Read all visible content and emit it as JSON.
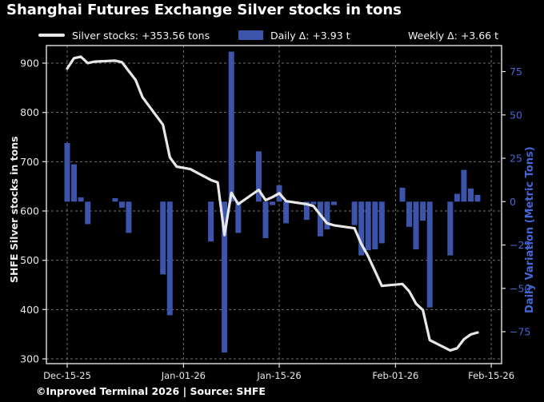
{
  "title": "Shanghai Futures Exchange Silver stocks in tons",
  "legend": {
    "silver_stocks": "Silver stocks: +353.56 tons",
    "daily_delta": "Daily Δ: +3.93 t",
    "weekly_delta": "Weekly Δ: +3.66 t"
  },
  "footer": "©Inproved Terminal 2026 | Source: SHFE",
  "colors": {
    "background": "#000000",
    "line": "#e8e8e8",
    "bar": "#3c55ab",
    "right_axis_text": "#4666d6",
    "axis_text": "#e8e8e8",
    "grid": "#999999",
    "spine": "#d5d5d5"
  },
  "chart_data": {
    "type": "combo-line-bar",
    "title": "Shanghai Futures Exchange Silver stocks in tons",
    "grid": "dashed",
    "legend_position": "top",
    "x_axis": {
      "tick_labels": [
        "Dec-15-25",
        "Jan-01-26",
        "Jan-15-26",
        "Feb-01-26",
        "Feb-15-26"
      ],
      "tick_day_offsets": [
        0,
        17,
        31,
        48,
        62
      ]
    },
    "left_axis": {
      "label": "SHFE Silver stocks in tons",
      "ticks": [
        300,
        400,
        500,
        600,
        700,
        800,
        900
      ],
      "range": [
        290,
        936
      ]
    },
    "right_axis": {
      "label": "Daily Variation (Metric Tons)",
      "ticks": [
        -75,
        -50,
        -25,
        0,
        25,
        50,
        75
      ],
      "range": [
        -93,
        90
      ]
    },
    "dates": [
      "Dec-15",
      "Dec-16",
      "Dec-17",
      "Dec-18",
      "Dec-19",
      "Dec-22",
      "Dec-23",
      "Dec-24",
      "Dec-25",
      "Dec-26",
      "Dec-29",
      "Dec-30",
      "Dec-31",
      "Jan-02",
      "Jan-05",
      "Jan-06",
      "Jan-07",
      "Jan-08",
      "Jan-09",
      "Jan-12",
      "Jan-13",
      "Jan-14",
      "Jan-15",
      "Jan-16",
      "Jan-19",
      "Jan-20",
      "Jan-21",
      "Jan-22",
      "Jan-23",
      "Jan-26",
      "Jan-27",
      "Jan-28",
      "Jan-29",
      "Jan-30",
      "Feb-02",
      "Feb-03",
      "Feb-04",
      "Feb-05",
      "Feb-06",
      "Feb-09",
      "Feb-10",
      "Feb-11",
      "Feb-12",
      "Feb-13"
    ],
    "day_offsets": [
      0,
      1,
      2,
      3,
      4,
      7,
      8,
      9,
      10,
      11,
      14,
      15,
      16,
      18,
      21,
      22,
      23,
      24,
      25,
      28,
      29,
      30,
      31,
      32,
      35,
      36,
      37,
      38,
      39,
      42,
      43,
      44,
      45,
      46,
      49,
      50,
      51,
      52,
      53,
      56,
      57,
      58,
      59,
      60
    ],
    "series": [
      {
        "name": "Silver stocks (tons)",
        "type": "line",
        "axis": "left",
        "values": [
          889,
          910,
          913,
          900,
          903,
          905,
          902,
          884,
          866,
          831,
          775,
          709,
          690,
          685,
          663,
          658,
          551,
          637,
          614,
          643,
          622,
          628,
          636,
          620,
          614,
          610,
          592,
          575,
          571,
          565,
          533,
          508,
          478,
          448,
          452,
          437,
          412,
          399,
          338,
          317,
          321.5,
          339.8,
          349.63,
          353.56
        ]
      },
      {
        "name": "Daily variation (t)",
        "type": "bar",
        "axis": "right",
        "values": [
          33.8,
          21.5,
          2.5,
          -13,
          0,
          2,
          -3.5,
          -18,
          0,
          0,
          -42,
          -65.5,
          0,
          0,
          -23,
          0,
          -87,
          86.5,
          -18,
          29,
          -21,
          -2,
          9.5,
          -12.5,
          -10.5,
          -1.5,
          -20,
          -16,
          -2,
          -13.5,
          -31,
          -28,
          -27.5,
          -24,
          8,
          -14.5,
          -27.5,
          -11,
          -61,
          -31,
          4.5,
          18.3,
          7.6,
          3.93
        ]
      }
    ]
  }
}
